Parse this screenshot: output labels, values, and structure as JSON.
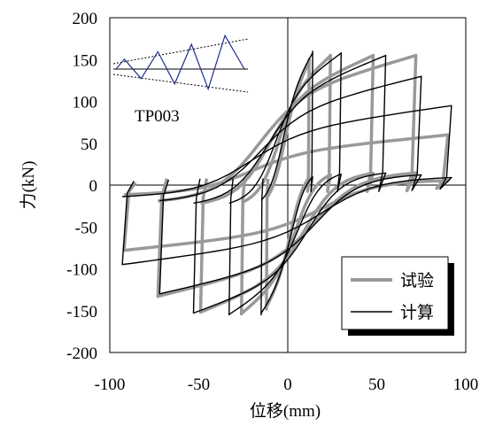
{
  "chart_data": {
    "type": "line",
    "title": "",
    "xlabel": "位移(mm)",
    "ylabel": "力(kN)",
    "xlim": [
      -100,
      100
    ],
    "ylim": [
      -200,
      200
    ],
    "xticks": [
      -100,
      -50,
      0,
      50,
      100
    ],
    "yticks": [
      -200,
      -150,
      -100,
      -50,
      0,
      50,
      100,
      150,
      200
    ],
    "grid": false,
    "annotation": "TP003",
    "legend": {
      "position": "bottom-right",
      "entries": [
        "试验",
        "计算"
      ]
    },
    "series": [
      {
        "name": "试验",
        "color": "#999999",
        "cycles": [
          {
            "dmax": 12,
            "fmax": 150,
            "dmin": -12,
            "fmin": -148
          },
          {
            "dmax": 24,
            "fmax": 155,
            "dmin": -26,
            "fmin": -154
          },
          {
            "dmax": 48,
            "fmax": 155,
            "dmin": -49,
            "fmin": -152
          },
          {
            "dmax": 72,
            "fmax": 155,
            "dmin": -73,
            "fmin": -133
          },
          {
            "dmax": 90,
            "fmax": 60,
            "dmin": -92,
            "fmin": -78
          }
        ]
      },
      {
        "name": "计算",
        "color": "#000000",
        "cycles": [
          {
            "dmax": 14,
            "fmax": 160,
            "dmin": -15,
            "fmin": -155
          },
          {
            "dmax": 30,
            "fmax": 158,
            "dmin": -33,
            "fmin": -155
          },
          {
            "dmax": 55,
            "fmax": 155,
            "dmin": -53,
            "fmin": -153
          },
          {
            "dmax": 75,
            "fmax": 130,
            "dmin": -72,
            "fmin": -130
          },
          {
            "dmax": 92,
            "fmax": 95,
            "dmin": -93,
            "fmin": -95
          }
        ]
      }
    ],
    "loading_protocol": {
      "peaks": [
        0.4,
        -0.55,
        0.7,
        -0.85,
        1.0,
        -1.15,
        1.35
      ],
      "color": "#1f2d8c"
    }
  }
}
